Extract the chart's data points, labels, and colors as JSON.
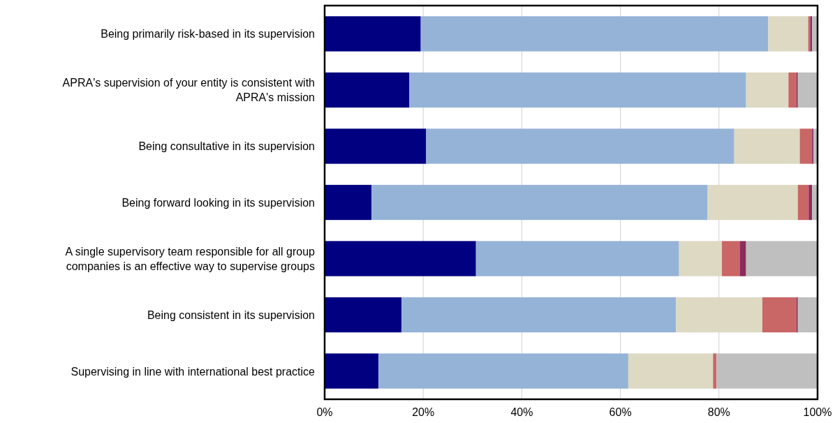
{
  "chart_data": {
    "type": "bar",
    "orientation": "horizontal",
    "stacked": true,
    "categories": [
      "Being primarily risk-based in its supervision",
      "APRA's supervision of your entity is consistent with APRA's mission",
      "Being consultative in its supervision",
      "Being forward looking in its supervision",
      "A single supervisory team responsible for all group companies is an effective way to supervise groups",
      "Being consistent in its supervision",
      "Supervising in line with international best practice"
    ],
    "series": [
      {
        "color": "#000080",
        "values": [
          19.5,
          17.2,
          20.6,
          9.5,
          30.7,
          15.6,
          10.9
        ]
      },
      {
        "color": "#95b3d7",
        "values": [
          70.5,
          68.3,
          62.5,
          68.2,
          41.2,
          55.7,
          50.7
        ]
      },
      {
        "color": "#ddd9c3",
        "values": [
          8.1,
          8.6,
          13.3,
          18.3,
          8.7,
          17.5,
          17.2
        ]
      },
      {
        "color": "#c96666",
        "values": [
          0.4,
          1.6,
          2.5,
          2.2,
          3.6,
          6.9,
          0.7
        ]
      },
      {
        "color": "#8b2c5c",
        "values": [
          0.4,
          0.3,
          0.3,
          0.7,
          1.3,
          0.3,
          0
        ]
      },
      {
        "color": "#bfbfbf",
        "values": [
          1.1,
          4.0,
          0.8,
          1.1,
          14.5,
          4.0,
          20.5
        ]
      }
    ],
    "xlim": [
      0,
      100
    ],
    "xticks": [
      {
        "value": 0,
        "label": "0%"
      },
      {
        "value": 20,
        "label": "20%"
      },
      {
        "value": 40,
        "label": "40%"
      },
      {
        "value": 60,
        "label": "60%"
      },
      {
        "value": 80,
        "label": "80%"
      },
      {
        "value": 100,
        "label": "100%"
      }
    ],
    "grid": "x"
  }
}
